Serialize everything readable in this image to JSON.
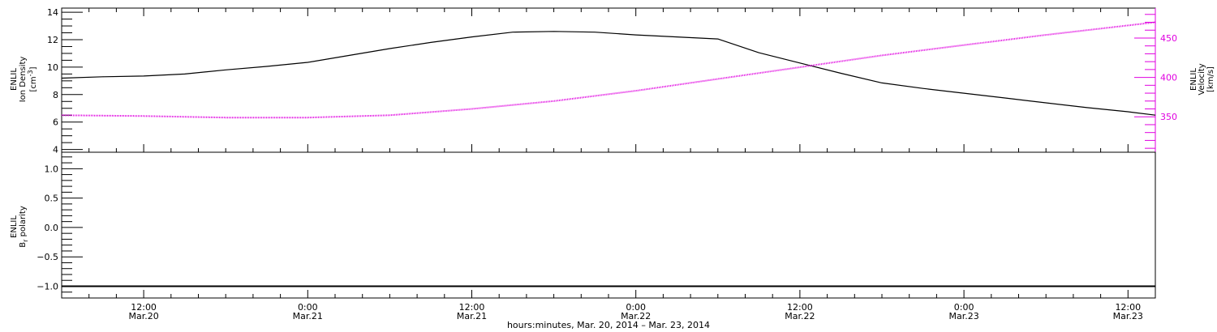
{
  "chart_data": [
    {
      "type": "line",
      "panel": "top",
      "x_axis": {
        "start": "2014-03-20T06:00",
        "end": "2014-03-23T14:00",
        "ticks": [
          {
            "t": "2014-03-20T12:00",
            "time": "12:00",
            "date": "Mar.20"
          },
          {
            "t": "2014-03-21T00:00",
            "time": "0:00",
            "date": "Mar.21"
          },
          {
            "t": "2014-03-21T12:00",
            "time": "12:00",
            "date": "Mar.21"
          },
          {
            "t": "2014-03-22T00:00",
            "time": "0:00",
            "date": "Mar.22"
          },
          {
            "t": "2014-03-22T12:00",
            "time": "12:00",
            "date": "Mar.22"
          },
          {
            "t": "2014-03-23T00:00",
            "time": "0:00",
            "date": "Mar.23"
          },
          {
            "t": "2014-03-23T12:00",
            "time": "12:00",
            "date": "Mar.23"
          }
        ]
      },
      "left_axis": {
        "title_lines": [
          "ENLIL",
          "Ion Density"
        ],
        "unit": "[cm",
        "unit_sup": "-3",
        "unit_end": "]",
        "ylim": [
          3.8,
          14.3
        ],
        "ticks": [
          4,
          6,
          8,
          10,
          12,
          14
        ],
        "tick_labels": [
          "4",
          "6",
          "8",
          "10",
          "12",
          "14"
        ],
        "color": "#000000"
      },
      "right_axis": {
        "title_lines": [
          "ENLIL",
          "Velocity",
          "[km/s]"
        ],
        "ylim": [
          305,
          488
        ],
        "ticks": [
          350,
          400,
          450
        ],
        "tick_labels": [
          "350",
          "400",
          "450"
        ],
        "color": "#e000e0"
      },
      "series": [
        {
          "axis": "left",
          "color": "#000000",
          "x": [
            "2014-03-20T06:00",
            "2014-03-20T09:00",
            "2014-03-20T12:00",
            "2014-03-20T15:00",
            "2014-03-20T18:00",
            "2014-03-20T21:00",
            "2014-03-21T00:00",
            "2014-03-21T03:00",
            "2014-03-21T06:00",
            "2014-03-21T09:00",
            "2014-03-21T12:00",
            "2014-03-21T15:00",
            "2014-03-21T18:00",
            "2014-03-21T21:00",
            "2014-03-22T00:00",
            "2014-03-22T03:00",
            "2014-03-22T06:00",
            "2014-03-22T09:00",
            "2014-03-22T12:00",
            "2014-03-22T15:00",
            "2014-03-22T18:00",
            "2014-03-22T21:00",
            "2014-03-23T00:00",
            "2014-03-23T03:00",
            "2014-03-23T06:00",
            "2014-03-23T09:00",
            "2014-03-23T12:00",
            "2014-03-23T14:00"
          ],
          "values": [
            9.2,
            9.3,
            9.35,
            9.5,
            9.8,
            10.05,
            10.35,
            10.85,
            11.35,
            11.8,
            12.2,
            12.55,
            12.6,
            12.55,
            12.35,
            12.2,
            12.05,
            11.05,
            10.3,
            9.55,
            8.85,
            8.45,
            8.1,
            7.75,
            7.4,
            7.05,
            6.75,
            6.5
          ]
        },
        {
          "axis": "right",
          "color": "#e000e0",
          "x": [
            "2014-03-20T06:00",
            "2014-03-20T12:00",
            "2014-03-20T18:00",
            "2014-03-21T00:00",
            "2014-03-21T06:00",
            "2014-03-21T12:00",
            "2014-03-21T18:00",
            "2014-03-22T00:00",
            "2014-03-22T06:00",
            "2014-03-22T12:00",
            "2014-03-22T18:00",
            "2014-03-23T00:00",
            "2014-03-23T06:00",
            "2014-03-23T12:00",
            "2014-03-23T14:00"
          ],
          "values": [
            352,
            351,
            349,
            349,
            352,
            360,
            370,
            383,
            398,
            413,
            428,
            441,
            454,
            466,
            470
          ]
        }
      ]
    },
    {
      "type": "line",
      "panel": "bottom",
      "y_axis": {
        "title_lines": [
          "ENLIL",
          "B",
          "r",
          " polarity"
        ],
        "ylim": [
          -1.2,
          1.28
        ],
        "ticks": [
          -1.0,
          -0.5,
          0.0,
          0.5,
          1.0
        ],
        "tick_labels": [
          "−1.0",
          "−0.5",
          "0.0",
          "0.5",
          "1.0"
        ]
      },
      "series": [
        {
          "color": "#000000",
          "x": [
            "2014-03-20T06:00",
            "2014-03-23T14:00"
          ],
          "values": [
            -1.0,
            -1.0
          ]
        }
      ],
      "xlabel": "hours:minutes, Mar. 20, 2014 – Mar. 23, 2014"
    }
  ]
}
